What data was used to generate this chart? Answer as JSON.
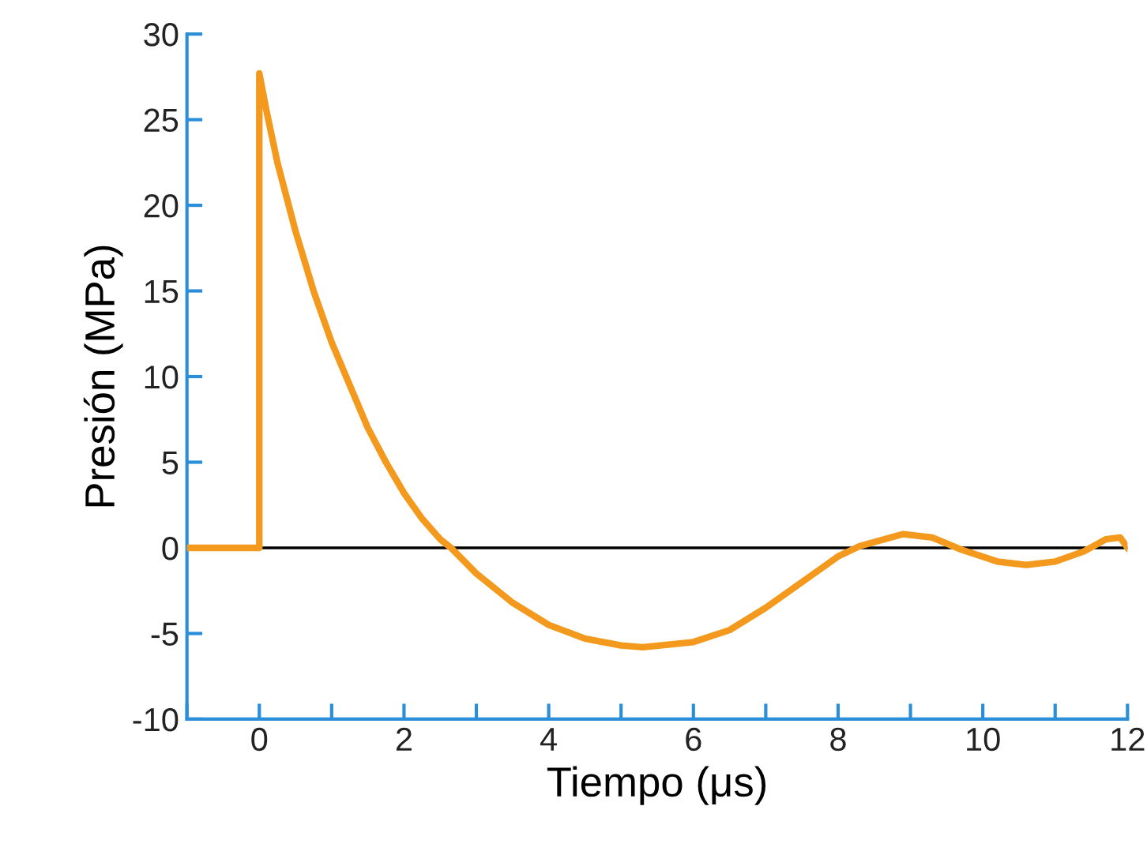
{
  "chart_data": {
    "type": "line",
    "xlabel": "Tiempo (μs)",
    "ylabel": "Presión (MPa)",
    "series": [
      {
        "color": "#f39a1e",
        "x": [
          -1,
          0,
          0,
          0.1,
          0.25,
          0.5,
          0.75,
          1,
          1.25,
          1.5,
          1.75,
          2,
          2.25,
          2.5,
          2.65,
          3,
          3.5,
          4,
          4.5,
          5,
          5.3,
          6,
          6.5,
          7,
          7.5,
          8,
          8.3,
          8.9,
          9.3,
          9.7,
          10.2,
          10.6,
          11,
          11.4,
          11.7,
          11.9,
          12
        ],
        "values": [
          0,
          0,
          27.7,
          25.5,
          22.5,
          18.5,
          15,
          12,
          9.5,
          7,
          5,
          3.2,
          1.7,
          0.5,
          0,
          -1.5,
          -3.2,
          -4.5,
          -5.3,
          -5.7,
          -5.8,
          -5.5,
          -4.8,
          -3.5,
          -2,
          -0.5,
          0.1,
          0.8,
          0.6,
          -0.1,
          -0.8,
          -1,
          -0.8,
          -0.2,
          0.5,
          0.6,
          0
        ]
      }
    ],
    "xlim": [
      -1,
      12
    ],
    "xticks": [
      {
        "value": -1,
        "label": null
      },
      0,
      {
        "value": 1,
        "label": null
      },
      2,
      {
        "value": 3,
        "label": null
      },
      4,
      {
        "value": 5,
        "label": null
      },
      6,
      {
        "value": 7,
        "label": null
      },
      8,
      {
        "value": 9,
        "label": null
      },
      10,
      {
        "value": 11,
        "label": null
      },
      12
    ],
    "ylim": [
      -10,
      30
    ],
    "yticks": [
      -10,
      -5,
      0,
      5,
      10,
      15,
      20,
      25,
      30
    ],
    "ref_lines": [
      {
        "axis": "y",
        "value": 0,
        "color": "#000000"
      }
    ],
    "grid": false,
    "marker": "none",
    "line_style": "solid"
  }
}
